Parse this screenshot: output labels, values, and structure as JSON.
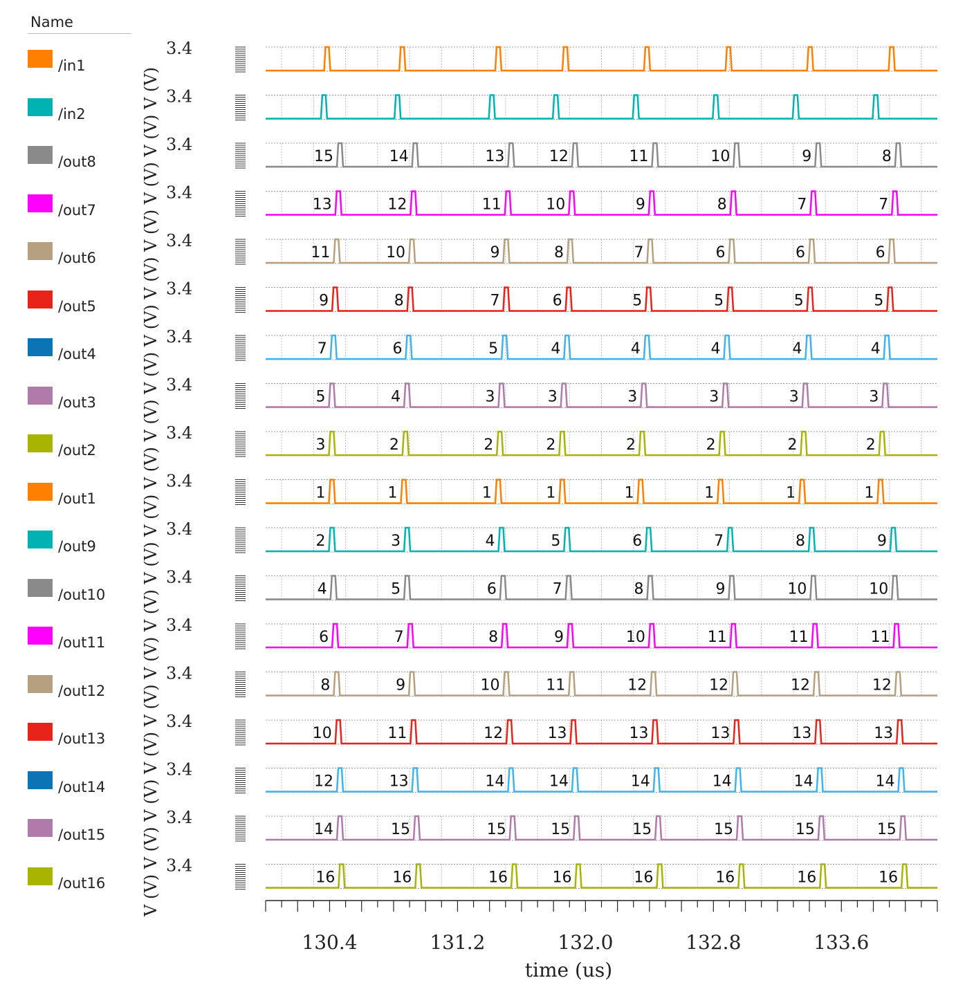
{
  "legend": {
    "header": "Name",
    "items": [
      {
        "name": "/in1",
        "color": "#ff8000"
      },
      {
        "name": "/in2",
        "color": "#00b3b3"
      },
      {
        "name": "/out8",
        "color": "#8a8a8a"
      },
      {
        "name": "/out7",
        "color": "#ff00ff"
      },
      {
        "name": "/out6",
        "color": "#b5a07f"
      },
      {
        "name": "/out5",
        "color": "#e8231a"
      },
      {
        "name": "/out4",
        "color": "#0a74b5"
      },
      {
        "name": "/out3",
        "color": "#b07aab"
      },
      {
        "name": "/out2",
        "color": "#a8b400"
      },
      {
        "name": "/out1",
        "color": "#ff8000"
      },
      {
        "name": "/out9",
        "color": "#00b3b3"
      },
      {
        "name": "/out10",
        "color": "#8a8a8a"
      },
      {
        "name": "/out11",
        "color": "#ff00ff"
      },
      {
        "name": "/out12",
        "color": "#b5a07f"
      },
      {
        "name": "/out13",
        "color": "#e8231a"
      },
      {
        "name": "/out14",
        "color": "#0a74b5"
      },
      {
        "name": "/out15",
        "color": "#b07aab"
      },
      {
        "name": "/out16",
        "color": "#a8b400"
      }
    ]
  },
  "y_unit_label": "V (V)",
  "chart_data": {
    "type": "line",
    "xlabel": "time (us)",
    "x_ticks": [
      "130.4",
      "131.2",
      "132.0",
      "132.8",
      "133.6"
    ],
    "xlim": [
      130.0,
      134.2
    ],
    "ylim": [
      0,
      3.4
    ],
    "y_tick": "3.4",
    "grid": true,
    "pulse_width_us": 0.03,
    "series": [
      {
        "name": "/in1",
        "color": "#ff8000",
        "pulses": [
          130.37,
          130.84,
          131.44,
          131.86,
          132.37,
          132.88,
          133.39,
          133.9
        ],
        "labels": []
      },
      {
        "name": "/in2",
        "color": "#00b3b3",
        "pulses": [
          130.35,
          130.81,
          131.4,
          131.8,
          132.3,
          132.8,
          133.3,
          133.8
        ],
        "labels": []
      },
      {
        "name": "/out8",
        "color": "#8a8a8a",
        "pulses": [
          130.45,
          130.92,
          131.52,
          131.92,
          132.42,
          132.93,
          133.44,
          133.94
        ],
        "labels": [
          "15",
          "14",
          "13",
          "12",
          "11",
          "10",
          "9",
          "8"
        ]
      },
      {
        "name": "/out7",
        "color": "#ff00ff",
        "pulses": [
          130.44,
          130.91,
          131.5,
          131.9,
          132.4,
          132.91,
          133.41,
          133.92
        ],
        "labels": [
          "13",
          "12",
          "11",
          "10",
          "9",
          "8",
          "7",
          "7"
        ]
      },
      {
        "name": "/out6",
        "color": "#b5a07f",
        "pulses": [
          130.43,
          130.9,
          131.49,
          131.89,
          132.39,
          132.9,
          133.4,
          133.9
        ],
        "labels": [
          "11",
          "10",
          "9",
          "8",
          "7",
          "6",
          "6",
          "6"
        ]
      },
      {
        "name": "/out5",
        "color": "#e8231a",
        "pulses": [
          130.42,
          130.89,
          131.49,
          131.88,
          132.38,
          132.89,
          133.39,
          133.89
        ],
        "labels": [
          "9",
          "8",
          "7",
          "6",
          "5",
          "5",
          "5",
          "5"
        ]
      },
      {
        "name": "/out4",
        "color": "#3fb3ee",
        "pulses": [
          130.41,
          130.88,
          131.48,
          131.87,
          132.37,
          132.87,
          133.38,
          133.87
        ],
        "labels": [
          "7",
          "6",
          "5",
          "4",
          "4",
          "4",
          "4",
          "4"
        ]
      },
      {
        "name": "/out3",
        "color": "#b07aab",
        "pulses": [
          130.4,
          130.87,
          131.46,
          131.85,
          132.35,
          132.86,
          133.36,
          133.86
        ],
        "labels": [
          "5",
          "4",
          "3",
          "3",
          "3",
          "3",
          "3",
          "3"
        ]
      },
      {
        "name": "/out2",
        "color": "#a8b400",
        "pulses": [
          130.4,
          130.86,
          131.45,
          131.84,
          132.34,
          132.84,
          133.35,
          133.84
        ],
        "labels": [
          "3",
          "2",
          "2",
          "2",
          "2",
          "2",
          "2",
          "2"
        ]
      },
      {
        "name": "/out1",
        "color": "#ff8000",
        "pulses": [
          130.4,
          130.85,
          131.44,
          131.84,
          132.33,
          132.83,
          133.34,
          133.83
        ],
        "labels": [
          "1",
          "1",
          "1",
          "1",
          "1",
          "1",
          "1",
          "1"
        ]
      },
      {
        "name": "/out9",
        "color": "#00b3b3",
        "pulses": [
          130.4,
          130.87,
          131.46,
          131.87,
          132.38,
          132.89,
          133.4,
          133.91
        ],
        "labels": [
          "2",
          "3",
          "4",
          "5",
          "6",
          "7",
          "8",
          "9"
        ]
      },
      {
        "name": "/out10",
        "color": "#8a8a8a",
        "pulses": [
          130.41,
          130.87,
          131.47,
          131.88,
          132.39,
          132.9,
          133.41,
          133.92
        ],
        "labels": [
          "4",
          "5",
          "6",
          "7",
          "8",
          "9",
          "10",
          "10"
        ]
      },
      {
        "name": "/out11",
        "color": "#ff00ff",
        "pulses": [
          130.42,
          130.89,
          131.48,
          131.89,
          132.4,
          132.91,
          133.42,
          133.93
        ],
        "labels": [
          "6",
          "7",
          "8",
          "9",
          "10",
          "11",
          "11",
          "11"
        ]
      },
      {
        "name": "/out12",
        "color": "#b5a07f",
        "pulses": [
          130.43,
          130.9,
          131.49,
          131.9,
          132.41,
          132.92,
          133.43,
          133.94
        ],
        "labels": [
          "8",
          "9",
          "10",
          "11",
          "12",
          "12",
          "12",
          "12"
        ]
      },
      {
        "name": "/out13",
        "color": "#e8231a",
        "pulses": [
          130.44,
          130.91,
          131.51,
          131.91,
          132.42,
          132.93,
          133.44,
          133.95
        ],
        "labels": [
          "10",
          "11",
          "12",
          "13",
          "13",
          "13",
          "13",
          "13"
        ]
      },
      {
        "name": "/out14",
        "color": "#3fb3ee",
        "pulses": [
          130.45,
          130.92,
          131.52,
          131.92,
          132.43,
          132.94,
          133.45,
          133.96
        ],
        "labels": [
          "12",
          "13",
          "14",
          "14",
          "14",
          "14",
          "14",
          "14"
        ]
      },
      {
        "name": "/out15",
        "color": "#b07aab",
        "pulses": [
          130.45,
          130.93,
          131.53,
          131.93,
          132.44,
          132.95,
          133.46,
          133.97
        ],
        "labels": [
          "14",
          "15",
          "15",
          "15",
          "15",
          "15",
          "15",
          "15"
        ]
      },
      {
        "name": "/out16",
        "color": "#a8b400",
        "pulses": [
          130.46,
          130.94,
          131.54,
          131.94,
          132.45,
          132.96,
          133.47,
          133.98
        ],
        "labels": [
          "16",
          "16",
          "16",
          "16",
          "16",
          "16",
          "16",
          "16"
        ]
      }
    ]
  }
}
